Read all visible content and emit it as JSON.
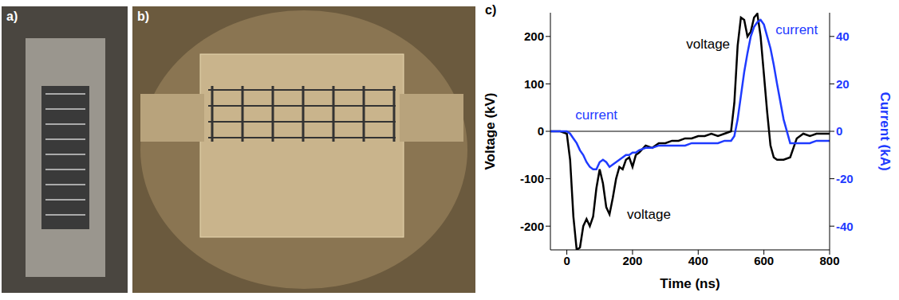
{
  "photos": [
    {
      "label": "a)"
    },
    {
      "label": "b)"
    }
  ],
  "chart_data": {
    "label": "c)",
    "type": "line",
    "xlabel": "Time (ns)",
    "ylabel": "Voltage (kV)",
    "y2label": "Current (kA)",
    "xlim": [
      -50,
      800
    ],
    "xticks": [
      0,
      200,
      400,
      600,
      800
    ],
    "ylim": [
      -250,
      250
    ],
    "yticks": [
      -200,
      -100,
      0,
      100,
      200
    ],
    "y2lim": [
      -50,
      50
    ],
    "y2ticks": [
      -40,
      -20,
      0,
      20,
      40
    ],
    "zero_line": 0,
    "grid": false,
    "x": [
      -50,
      -20,
      0,
      10,
      20,
      30,
      40,
      50,
      60,
      70,
      80,
      90,
      100,
      110,
      120,
      130,
      140,
      150,
      160,
      170,
      180,
      190,
      200,
      210,
      220,
      240,
      260,
      280,
      300,
      320,
      340,
      360,
      380,
      400,
      420,
      440,
      460,
      480,
      500,
      510,
      520,
      530,
      540,
      550,
      560,
      570,
      580,
      590,
      600,
      610,
      620,
      630,
      640,
      660,
      680,
      700,
      720,
      740,
      760,
      780,
      800
    ],
    "series": [
      {
        "name": "voltage",
        "color": "#000000",
        "values": [
          0,
          0,
          -5,
          -60,
          -180,
          -250,
          -245,
          -200,
          -185,
          -200,
          -180,
          -120,
          -80,
          -110,
          -160,
          -175,
          -140,
          -100,
          -75,
          -80,
          -60,
          -55,
          -75,
          -50,
          -45,
          -30,
          -35,
          -25,
          -25,
          -20,
          -20,
          -15,
          -15,
          -10,
          -10,
          -5,
          -10,
          -5,
          0,
          60,
          180,
          240,
          235,
          200,
          210,
          240,
          248,
          200,
          120,
          40,
          -30,
          -55,
          -60,
          -60,
          -55,
          -15,
          -5,
          -10,
          -5,
          -5,
          -5
        ]
      },
      {
        "name": "current",
        "color": "#1f3bff",
        "axis": "y2",
        "values": [
          0,
          0,
          0,
          -1,
          -3,
          -5,
          -8,
          -10,
          -13,
          -15,
          -16,
          -16,
          -13,
          -12,
          -13,
          -15,
          -14,
          -13,
          -12,
          -11,
          -10,
          -10,
          -9,
          -9,
          -8,
          -7,
          -7,
          -6,
          -6,
          -6,
          -6,
          -6,
          -5,
          -5,
          -5,
          -5,
          -5,
          -4,
          -4,
          -2,
          5,
          15,
          25,
          33,
          40,
          44,
          46,
          47,
          45,
          40,
          35,
          28,
          20,
          5,
          -5,
          -5,
          -5,
          -5,
          -4,
          -4,
          -4
        ]
      }
    ],
    "annotations": [
      {
        "text": "current",
        "x": 90,
        "y": 35,
        "color": "#1f3bff"
      },
      {
        "text": "voltage",
        "x": 250,
        "y": -175,
        "color": "#000000"
      },
      {
        "text": "voltage",
        "x": 430,
        "y": 185,
        "color": "#000000"
      },
      {
        "text": "current",
        "x": 700,
        "y": 215,
        "color": "#1f3bff"
      }
    ]
  }
}
